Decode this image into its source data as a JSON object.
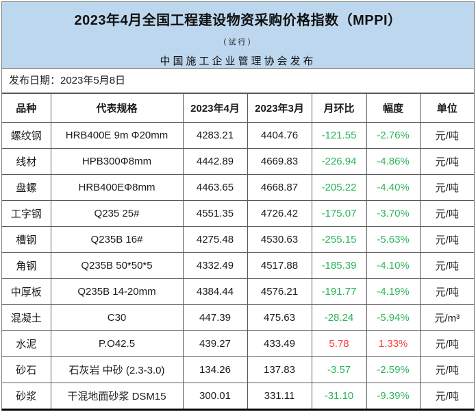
{
  "header": {
    "title": "2023年4月全国工程建设物资采购价格指数（MPPI）",
    "subtitle": "（试行）",
    "publisher": "中国施工企业管理协会发布"
  },
  "publish_date": "发布日期：2023年5月8日",
  "table": {
    "columns": [
      "品种",
      "代表规格",
      "2023年4月",
      "2023年3月",
      "月环比",
      "幅度",
      "单位"
    ],
    "rows": [
      {
        "name": "螺纹钢",
        "spec": "HRB400E 9m Φ20mm",
        "apr": "4283.21",
        "mar": "4404.76",
        "change": "-121.55",
        "pct": "-2.76%",
        "unit": "元/吨"
      },
      {
        "name": "线材",
        "spec": "HPB300Φ8mm",
        "apr": "4442.89",
        "mar": "4669.83",
        "change": "-226.94",
        "pct": "-4.86%",
        "unit": "元/吨"
      },
      {
        "name": "盘螺",
        "spec": "HRB400EΦ8mm",
        "apr": "4463.65",
        "mar": "4668.87",
        "change": "-205.22",
        "pct": "-4.40%",
        "unit": "元/吨"
      },
      {
        "name": "工字钢",
        "spec": "Q235 25#",
        "apr": "4551.35",
        "mar": "4726.42",
        "change": "-175.07",
        "pct": "-3.70%",
        "unit": "元/吨"
      },
      {
        "name": "槽钢",
        "spec": "Q235B 16#",
        "apr": "4275.48",
        "mar": "4530.63",
        "change": "-255.15",
        "pct": "-5.63%",
        "unit": "元/吨"
      },
      {
        "name": "角钢",
        "spec": "Q235B 50*50*5",
        "apr": "4332.49",
        "mar": "4517.88",
        "change": "-185.39",
        "pct": "-4.10%",
        "unit": "元/吨"
      },
      {
        "name": "中厚板",
        "spec": "Q235B 14-20mm",
        "apr": "4384.44",
        "mar": "4576.21",
        "change": "-191.77",
        "pct": "-4.19%",
        "unit": "元/吨"
      },
      {
        "name": "混凝土",
        "spec": "C30",
        "apr": "447.39",
        "mar": "475.63",
        "change": "-28.24",
        "pct": "-5.94%",
        "unit": "元/m³"
      },
      {
        "name": "水泥",
        "spec": "P.O42.5",
        "apr": "439.27",
        "mar": "433.49",
        "change": "5.78",
        "pct": "1.33%",
        "unit": "元/吨"
      },
      {
        "name": "砂石",
        "spec": "石灰岩 中砂 (2.3-3.0)",
        "apr": "134.26",
        "mar": "137.83",
        "change": "-3.57",
        "pct": "-2.59%",
        "unit": "元/吨"
      },
      {
        "name": "砂浆",
        "spec": "干混地面砂浆 DSM15",
        "apr": "300.01",
        "mar": "331.11",
        "change": "-31.10",
        "pct": "-9.39%",
        "unit": "元/吨"
      }
    ]
  },
  "colors": {
    "header_bg": "#BDD7EE",
    "negative_green": "#2BB45A",
    "positive_red": "#FA3B3B"
  }
}
